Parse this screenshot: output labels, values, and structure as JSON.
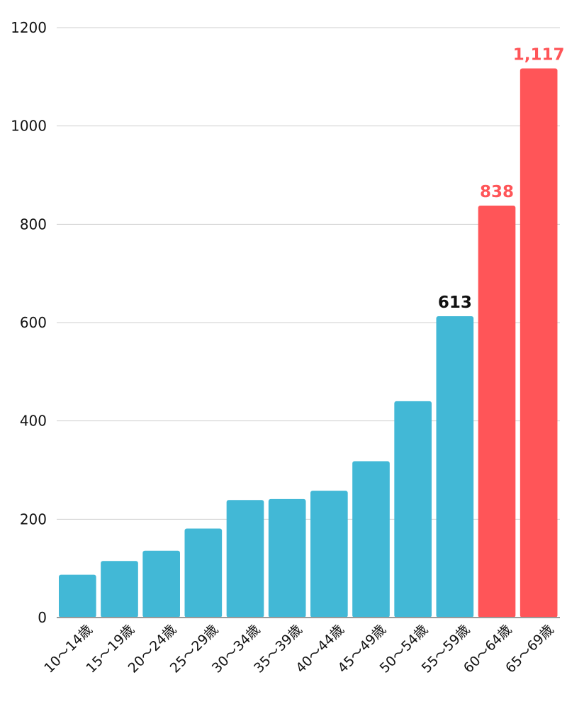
{
  "chart_data": {
    "type": "bar",
    "categories": [
      "10〜14歳",
      "15〜19歳",
      "20〜24歳",
      "25〜29歳",
      "30〜34歳",
      "35〜39歳",
      "40〜44歳",
      "45〜49歳",
      "50〜54歳",
      "55〜59歳",
      "60〜64歳",
      "65〜69歳"
    ],
    "values": [
      87,
      115,
      136,
      181,
      239,
      241,
      258,
      318,
      440,
      613,
      838,
      1117
    ],
    "bar_colors": [
      "#42b8d6",
      "#42b8d6",
      "#42b8d6",
      "#42b8d6",
      "#42b8d6",
      "#42b8d6",
      "#42b8d6",
      "#42b8d6",
      "#42b8d6",
      "#42b8d6",
      "#ff5558",
      "#ff5558"
    ],
    "data_labels": [
      {
        "index": 9,
        "text": "613",
        "color": "#111111"
      },
      {
        "index": 10,
        "text": "838",
        "color": "#ff5558"
      },
      {
        "index": 11,
        "text": "1,117",
        "color": "#ff5558"
      }
    ],
    "yticks": [
      0,
      200,
      400,
      600,
      800,
      1000,
      1200
    ],
    "ytick_labels": [
      "0",
      "200",
      "400",
      "600",
      "800",
      "1000",
      "1200"
    ],
    "ylim": [
      0,
      1200
    ],
    "grid": true,
    "xlabel": "",
    "ylabel": "",
    "title": ""
  }
}
